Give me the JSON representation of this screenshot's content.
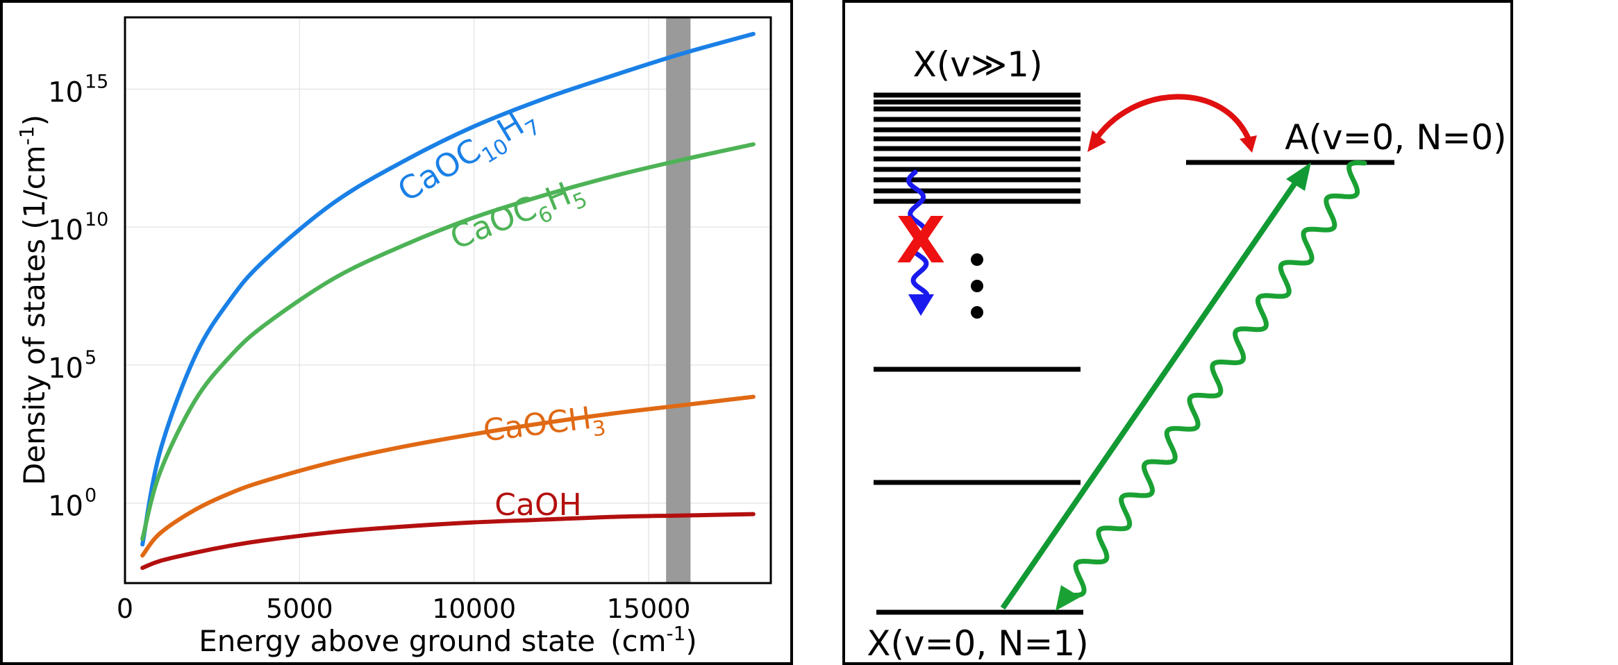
{
  "chart_data": {
    "type": "line",
    "xlabel_main": "Energy above ground state",
    "xlabel_unit_base": "(cm",
    "xlabel_unit_exp": "-1",
    "xlabel_unit_close": ")",
    "ylabel_main": "Density of states (1/cm",
    "ylabel_exp": "-1",
    "ylabel_close": ")",
    "xlim": [
      0,
      18500
    ],
    "ylog": true,
    "ylim_log10": [
      -2.9,
      17.6
    ],
    "x_ticks": [
      0,
      5000,
      10000,
      15000
    ],
    "x_tick_labels": [
      "0",
      "5000",
      "10000",
      "15000"
    ],
    "y_ticks_log10": [
      0,
      5,
      10,
      15
    ],
    "y_tick_base": "10",
    "y_tick_exps": [
      "0",
      "5",
      "10",
      "15"
    ],
    "grid": true,
    "shaded_band": [
      15500,
      16200
    ],
    "colors": {
      "band": "#9a9a9a",
      "grid": "#e6e6e6"
    },
    "series": [
      {
        "name_base": "CaOC",
        "name_sub1": "10",
        "name_mid": "H",
        "name_sub2": "7",
        "color": "#1a80e6",
        "x": [
          500,
          1000,
          2000,
          3000,
          4000,
          6000,
          8000,
          10000,
          12000,
          14000,
          16000,
          18000
        ],
        "log10y": [
          -1.5,
          1.85,
          5.3,
          7.35,
          8.8,
          10.9,
          12.4,
          13.65,
          14.65,
          15.5,
          16.3,
          17.0
        ]
      },
      {
        "name_base": "CaOC",
        "name_sub1": "6",
        "name_mid": "H",
        "name_sub2": "5",
        "color": "#4db356",
        "x": [
          500,
          1000,
          2000,
          3000,
          4000,
          6000,
          8000,
          10000,
          12000,
          14000,
          16000,
          18000
        ],
        "log10y": [
          -1.3,
          1.1,
          3.7,
          5.3,
          6.45,
          8.15,
          9.35,
          10.35,
          11.15,
          11.85,
          12.45,
          13.0
        ]
      },
      {
        "name_base": "CaOCH",
        "name_sub1": "3",
        "name_mid": "",
        "name_sub2": "",
        "color": "#e06914",
        "x": [
          500,
          1000,
          2000,
          3000,
          4000,
          6000,
          8000,
          10000,
          12000,
          14000,
          16000,
          18000
        ],
        "log10y": [
          -1.9,
          -1.1,
          -0.25,
          0.35,
          0.8,
          1.5,
          2.05,
          2.5,
          2.9,
          3.25,
          3.55,
          3.85
        ]
      },
      {
        "name_base": "CaOH",
        "name_sub1": "",
        "name_mid": "",
        "name_sub2": "",
        "color": "#b30f0f",
        "x": [
          500,
          1000,
          2000,
          3000,
          4000,
          6000,
          8000,
          10000,
          12000,
          14000,
          16000,
          18000
        ],
        "log10y": [
          -2.35,
          -2.1,
          -1.8,
          -1.55,
          -1.35,
          -1.05,
          -0.85,
          -0.7,
          -0.6,
          -0.5,
          -0.45,
          -0.4
        ]
      }
    ]
  },
  "diagram": {
    "label_xv": "X(v≫1)",
    "label_a": "A(v=0, N=0)",
    "label_x0": "X(v=0, N=1)",
    "cross": "X",
    "colors": {
      "pump": "#119933",
      "decay": "#1aa133",
      "mixing": "#e01010",
      "blocked": "#1a1aee",
      "cross": "#ee1111"
    }
  }
}
